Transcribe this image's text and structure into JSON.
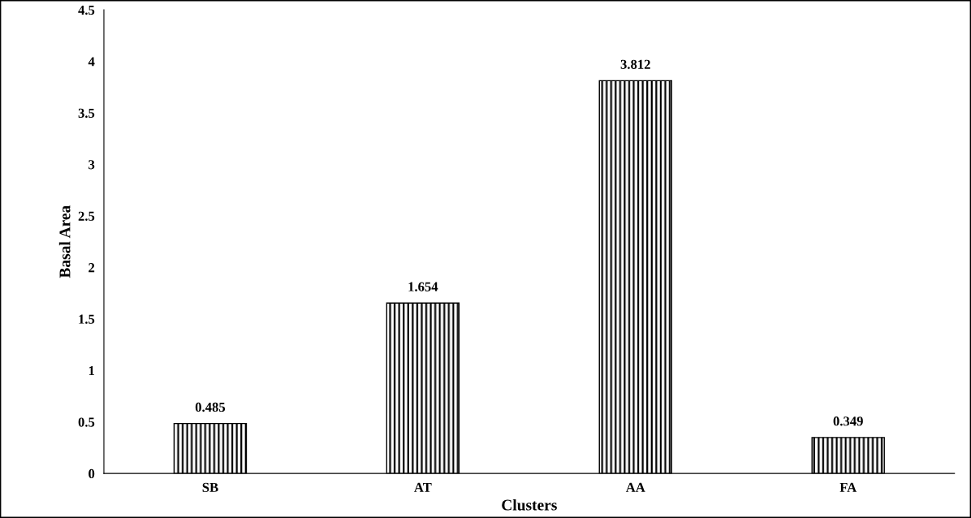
{
  "chart_data": {
    "type": "bar",
    "xlabel": "Clusters",
    "ylabel": "Basal Area",
    "categories": [
      "SB",
      "AT",
      "AA",
      "FA"
    ],
    "values": [
      0.485,
      1.654,
      3.812,
      0.349
    ],
    "color": "#000000",
    "ylim": [
      0,
      4.5
    ],
    "yticks": [
      {
        "value": 0,
        "label": "0"
      },
      0.5,
      {
        "value": 1,
        "label": "1"
      },
      1.5,
      {
        "value": 2,
        "label": "2"
      },
      2.5,
      {
        "value": 3,
        "label": "3"
      },
      3.5,
      {
        "value": 4,
        "label": "4"
      },
      4.5
    ],
    "grid": false,
    "data_labels": true
  }
}
